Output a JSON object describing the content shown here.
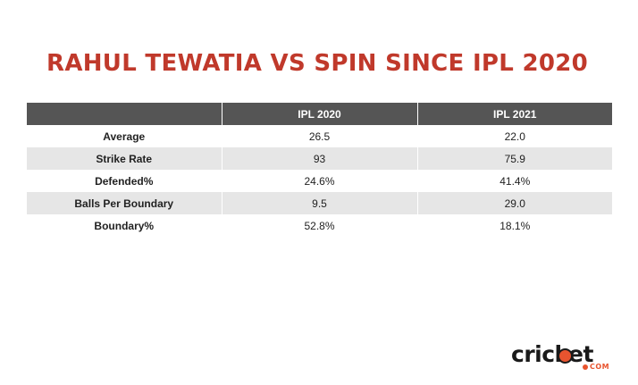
{
  "chart_data": {
    "type": "table",
    "title": "RAHUL TEWATIA VS SPIN SINCE IPL 2020",
    "columns": [
      "",
      "IPL 2020",
      "IPL 2021"
    ],
    "rows": [
      {
        "metric": "Average",
        "values": [
          "26.5",
          "22.0"
        ]
      },
      {
        "metric": "Strike Rate",
        "values": [
          "93",
          "75.9"
        ]
      },
      {
        "metric": "Defended%",
        "values": [
          "24.6%",
          "41.4%"
        ]
      },
      {
        "metric": "Balls Per Boundary",
        "values": [
          "9.5",
          "29.0"
        ]
      },
      {
        "metric": "Boundary%",
        "values": [
          "52.8%",
          "18.1%"
        ]
      }
    ]
  },
  "branding": {
    "logo_word": "cricket",
    "logo_suffix": "COM"
  },
  "colors": {
    "title": "#c0392b",
    "header_bg": "#555555",
    "alt_row_bg": "#e6e6e6",
    "logo_accent": "#e8542f"
  }
}
